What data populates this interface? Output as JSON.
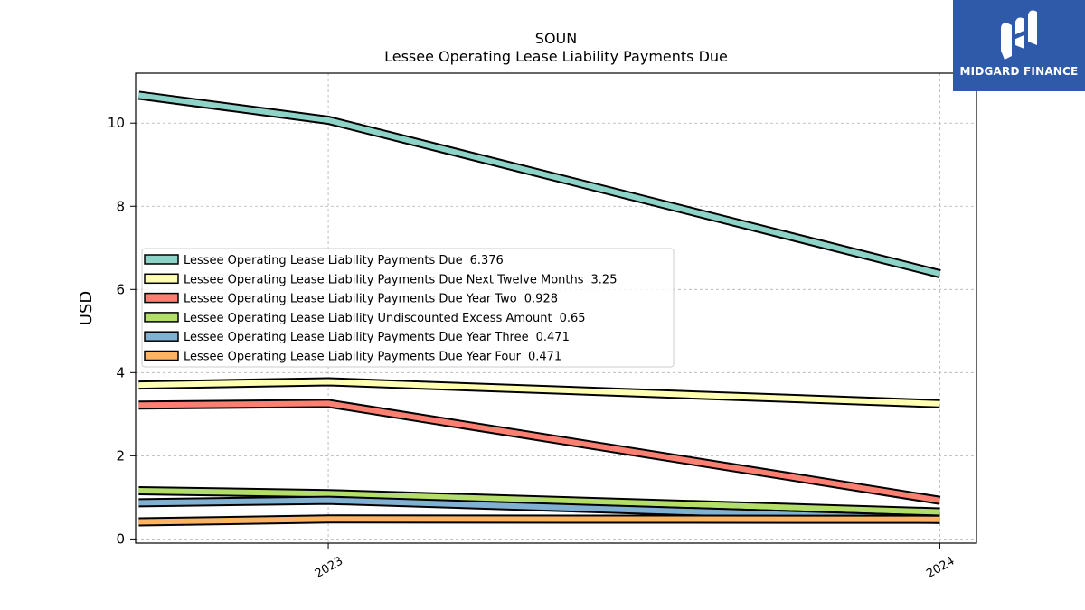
{
  "chart_data": {
    "type": "line",
    "title": "SOUN",
    "subtitle": "Lessee Operating Lease Liability Payments Due",
    "xlabel": "",
    "ylabel": "USD",
    "x_positions": [
      2022.69,
      2023.0,
      2024.0
    ],
    "x_ticks": [
      "2023",
      "2024"
    ],
    "ylim": [
      -0.1,
      11.2
    ],
    "xlim": [
      2022.685,
      2024.06
    ],
    "y_ticks": [
      "0",
      "2",
      "4",
      "6",
      "8",
      "10"
    ],
    "grid": true,
    "legend_position": "center-left",
    "series": [
      {
        "name": "Lessee Operating Lease Liability Payments Due",
        "legend_value": "6.376",
        "color": "#8dd3c7",
        "values": [
          10.67,
          10.07,
          6.376
        ]
      },
      {
        "name": "Lessee Operating Lease Liability Payments Due Next Twelve Months",
        "legend_value": "3.25",
        "color": "#ffffb3",
        "values": [
          3.7,
          3.78,
          3.25
        ]
      },
      {
        "name": "Lessee Operating Lease Liability Payments Due Year Two",
        "legend_value": "0.928",
        "color": "#fb8072",
        "values": [
          3.22,
          3.26,
          0.928
        ]
      },
      {
        "name": "Lessee Operating Lease Liability Undiscounted Excess Amount",
        "legend_value": "0.65",
        "color": "#b3de69",
        "values": [
          1.16,
          1.09,
          0.65
        ]
      },
      {
        "name": "Lessee Operating Lease Liability Payments Due Year Three",
        "legend_value": "0.471",
        "color": "#80b1d3",
        "values": [
          0.87,
          0.93,
          0.471
        ]
      },
      {
        "name": "Lessee Operating Lease Liability Payments Due Year Four",
        "legend_value": "0.471",
        "color": "#fdb462",
        "values": [
          0.41,
          0.48,
          0.471
        ]
      }
    ]
  },
  "logo": {
    "text": "MIDGARD FINANCE",
    "background": "#2f5aaa"
  }
}
